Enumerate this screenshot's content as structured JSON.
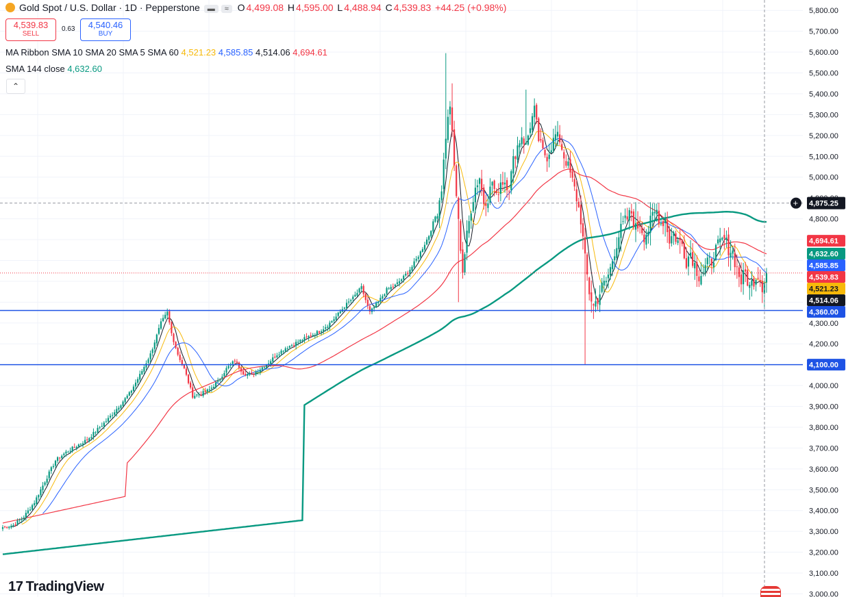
{
  "header": {
    "title": "Gold Spot / U.S. Dollar · 1D · Pepperstone",
    "open_label": "O",
    "open": "4,499.08",
    "high_label": "H",
    "high": "4,595.00",
    "low_label": "L",
    "low": "4,488.94",
    "close_label": "C",
    "close": "4,539.83",
    "change": "+44.25 (+0.98%)"
  },
  "trade": {
    "sell_price": "4,539.83",
    "sell_label": "SELL",
    "spread": "0.63",
    "buy_price": "4,540.46",
    "buy_label": "BUY"
  },
  "indicators": {
    "ma_ribbon_label": "MA Ribbon SMA 10 SMA 20 SMA 5 SMA 60",
    "ma_values": [
      "4,521.23",
      "4,585.85",
      "4,514.06",
      "4,694.61"
    ],
    "sma144_label": "SMA 144 close",
    "sma144_value": "4,632.60"
  },
  "logo": "TradingView",
  "colors": {
    "up": "#089981",
    "down": "#f23645",
    "sma5": "#131722",
    "sma10": "#f7b90a",
    "sma20": "#2962ff",
    "sma60": "#f23645",
    "sma144": "#089981",
    "hline": "#1e53e5"
  },
  "chart_data": {
    "type": "candlestick",
    "y_axis_ticks": [
      "5,800.00",
      "5,700.00",
      "5,600.00",
      "5,500.00",
      "5,400.00",
      "5,300.00",
      "5,200.00",
      "5,100.00",
      "5,000.00",
      "4,900.00",
      "4,800.00",
      "4,700.00",
      "4,600.00",
      "4,500.00",
      "4,400.00",
      "4,300.00",
      "4,200.00",
      "4,100.00",
      "4,000.00",
      "3,900.00",
      "3,800.00",
      "3,700.00",
      "3,600.00",
      "3,500.00",
      "3,400.00",
      "3,300.00",
      "3,200.00",
      "3,100.00",
      "3,000.00"
    ],
    "ylim": [
      3000,
      5800
    ],
    "horizontal_lines": [
      {
        "value": 4360,
        "label": "4,360.00"
      },
      {
        "value": 4100,
        "label": "4,100.00"
      }
    ],
    "crosshair": {
      "value": 4875.25,
      "label": "4,875.25"
    },
    "price_labels": [
      {
        "value": 4694.61,
        "label": "4,694.61",
        "color": "#f23645"
      },
      {
        "value": 4632.6,
        "label": "4,632.60",
        "color": "#089981"
      },
      {
        "value": 4585.85,
        "label": "4,585.85",
        "color": "#2962ff"
      },
      {
        "value": 4539.83,
        "label": "4,539.83",
        "color": "#f23645"
      },
      {
        "value": 4521.23,
        "label": "4,521.23",
        "color": "#f7b90a"
      },
      {
        "value": 4514.06,
        "label": "4,514.06",
        "color": "#131722"
      },
      {
        "value": 4360.0,
        "label": "4,360.00",
        "color": "#1e53e5"
      },
      {
        "value": 4100.0,
        "label": "4,100.00",
        "color": "#1e53e5"
      }
    ],
    "close_anchors": [
      [
        0,
        3320
      ],
      [
        5,
        3330
      ],
      [
        10,
        3370
      ],
      [
        15,
        3440
      ],
      [
        20,
        3540
      ],
      [
        25,
        3640
      ],
      [
        30,
        3680
      ],
      [
        35,
        3710
      ],
      [
        40,
        3740
      ],
      [
        45,
        3790
      ],
      [
        50,
        3840
      ],
      [
        55,
        3900
      ],
      [
        60,
        3960
      ],
      [
        65,
        4050
      ],
      [
        70,
        4150
      ],
      [
        75,
        4300
      ],
      [
        78,
        4350
      ],
      [
        80,
        4250
      ],
      [
        83,
        4150
      ],
      [
        86,
        4080
      ],
      [
        90,
        3950
      ],
      [
        94,
        3960
      ],
      [
        98,
        3980
      ],
      [
        102,
        4020
      ],
      [
        106,
        4080
      ],
      [
        110,
        4120
      ],
      [
        114,
        4060
      ],
      [
        118,
        4050
      ],
      [
        122,
        4080
      ],
      [
        126,
        4110
      ],
      [
        130,
        4150
      ],
      [
        134,
        4180
      ],
      [
        138,
        4200
      ],
      [
        142,
        4220
      ],
      [
        146,
        4240
      ],
      [
        150,
        4260
      ],
      [
        154,
        4290
      ],
      [
        158,
        4330
      ],
      [
        162,
        4380
      ],
      [
        166,
        4420
      ],
      [
        170,
        4470
      ],
      [
        174,
        4350
      ],
      [
        178,
        4400
      ],
      [
        182,
        4460
      ],
      [
        186,
        4480
      ],
      [
        190,
        4520
      ],
      [
        194,
        4570
      ],
      [
        198,
        4640
      ],
      [
        202,
        4720
      ],
      [
        206,
        4840
      ],
      [
        208,
        4950
      ],
      [
        210,
        5200
      ],
      [
        212,
        5350
      ],
      [
        214,
        5050
      ],
      [
        216,
        4780
      ],
      [
        218,
        4550
      ],
      [
        220,
        4720
      ],
      [
        222,
        4850
      ],
      [
        224,
        4950
      ],
      [
        226,
        5000
      ],
      [
        228,
        4880
      ],
      [
        230,
        4900
      ],
      [
        232,
        4980
      ],
      [
        234,
        4900
      ],
      [
        236,
        4980
      ],
      [
        238,
        4980
      ],
      [
        240,
        4950
      ],
      [
        242,
        5080
      ],
      [
        244,
        5150
      ],
      [
        246,
        5200
      ],
      [
        248,
        5150
      ],
      [
        250,
        5250
      ],
      [
        252,
        5320
      ],
      [
        254,
        5180
      ],
      [
        256,
        5120
      ],
      [
        258,
        5100
      ],
      [
        260,
        5150
      ],
      [
        262,
        5200
      ],
      [
        264,
        5180
      ],
      [
        266,
        5100
      ],
      [
        268,
        5050
      ],
      [
        270,
        4980
      ],
      [
        272,
        4900
      ],
      [
        274,
        4800
      ],
      [
        276,
        4600
      ],
      [
        278,
        4450
      ],
      [
        280,
        4380
      ],
      [
        282,
        4420
      ],
      [
        284,
        4470
      ],
      [
        286,
        4500
      ],
      [
        288,
        4560
      ],
      [
        290,
        4650
      ],
      [
        292,
        4720
      ],
      [
        294,
        4770
      ],
      [
        296,
        4800
      ],
      [
        298,
        4830
      ],
      [
        300,
        4750
      ],
      [
        302,
        4780
      ],
      [
        304,
        4720
      ],
      [
        306,
        4750
      ],
      [
        308,
        4810
      ],
      [
        310,
        4840
      ],
      [
        312,
        4780
      ],
      [
        314,
        4800
      ],
      [
        316,
        4700
      ],
      [
        318,
        4730
      ],
      [
        320,
        4690
      ],
      [
        322,
        4680
      ],
      [
        324,
        4600
      ],
      [
        326,
        4640
      ],
      [
        328,
        4580
      ],
      [
        330,
        4530
      ],
      [
        332,
        4550
      ],
      [
        334,
        4580
      ],
      [
        336,
        4600
      ],
      [
        338,
        4650
      ],
      [
        340,
        4680
      ],
      [
        342,
        4700
      ],
      [
        344,
        4660
      ],
      [
        346,
        4640
      ],
      [
        348,
        4560
      ],
      [
        350,
        4500
      ],
      [
        352,
        4540
      ],
      [
        354,
        4470
      ],
      [
        356,
        4510
      ],
      [
        358,
        4540
      ],
      [
        360,
        4480
      ],
      [
        362,
        4540
      ]
    ],
    "series": [
      {
        "name": "SMA 5",
        "period": 5
      },
      {
        "name": "SMA 10",
        "period": 10
      },
      {
        "name": "SMA 20",
        "period": 20
      },
      {
        "name": "SMA 60",
        "period": 60
      },
      {
        "name": "SMA 144",
        "period": 144
      }
    ]
  }
}
